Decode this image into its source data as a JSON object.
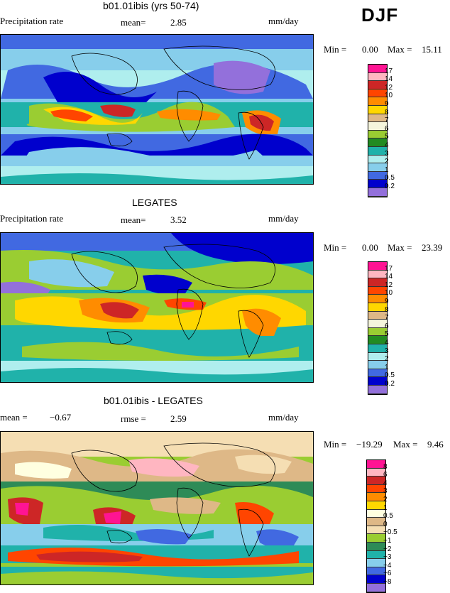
{
  "season": "DJF",
  "panels": [
    {
      "title": "b01.01ibis (yrs 50-74)",
      "left_label": "Precipitation rate",
      "stat1_label": "mean=",
      "stat1_value": "2.85",
      "units": "mm/day",
      "min_label": "Min =",
      "min_value": "0.00",
      "max_label": "Max =",
      "max_value": "15.11",
      "legend_labels": [
        "17",
        "14",
        "12",
        "10",
        "9",
        "8",
        "7",
        "6",
        "5",
        "4",
        "3",
        "2",
        "1",
        "0.5",
        "0.2"
      ]
    },
    {
      "title": "LEGATES",
      "left_label": "Precipitation rate",
      "stat1_label": "mean=",
      "stat1_value": "3.52",
      "units": "mm/day",
      "min_label": "Min =",
      "min_value": "0.00",
      "max_label": "Max =",
      "max_value": "23.39",
      "legend_labels": [
        "17",
        "14",
        "12",
        "10",
        "9",
        "8",
        "7",
        "6",
        "5",
        "4",
        "3",
        "2",
        "1",
        "0.5",
        "0.2"
      ]
    },
    {
      "title": "b01.01ibis - LEGATES",
      "left_label": "mean =",
      "left_value": "−0.67",
      "stat1_label": "rmse =",
      "stat1_value": "2.59",
      "units": "mm/day",
      "min_label": "Min =",
      "min_value": "−19.29",
      "max_label": "Max =",
      "max_value": "9.46",
      "legend_labels": [
        "8",
        "6",
        "4",
        "3",
        "2",
        "1",
        "0.5",
        "0",
        "−0.5",
        "−1",
        "−2",
        "−3",
        "−4",
        "−6",
        "−8"
      ]
    }
  ],
  "colors": {
    "precip_scale": [
      "#ff1493",
      "#ffb6c1",
      "#cd2626",
      "#ff4500",
      "#ff8c00",
      "#ffd700",
      "#deb887",
      "#f5f5dc",
      "#9acd32",
      "#228b22",
      "#20b2aa",
      "#afeeee",
      "#87ceeb",
      "#4169e1",
      "#0000cd",
      "#9370db"
    ],
    "diff_scale": [
      "#ff1493",
      "#ffb6c1",
      "#cd2626",
      "#ff4500",
      "#ff8c00",
      "#ffd700",
      "#ffffe0",
      "#deb887",
      "#f5deb3",
      "#9acd32",
      "#2e8b57",
      "#20b2aa",
      "#87ceeb",
      "#4169e1",
      "#0000cd",
      "#9370db"
    ]
  }
}
